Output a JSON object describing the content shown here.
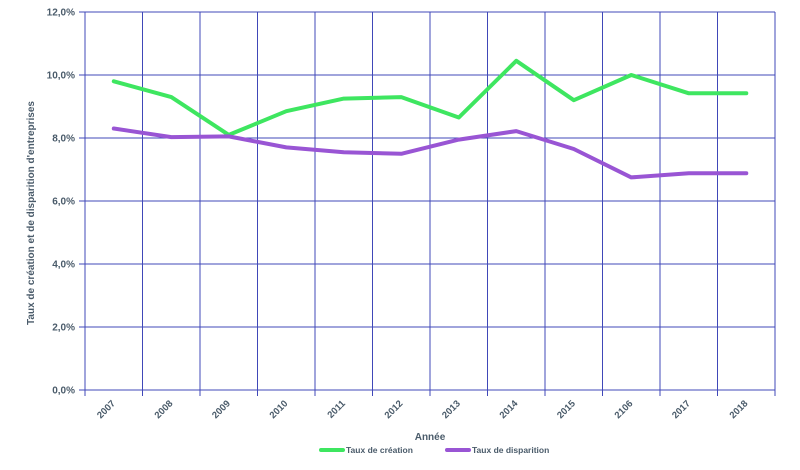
{
  "chart_data": {
    "type": "line",
    "title": "",
    "xlabel": "Année",
    "ylabel": "Taux de création et de disparition d'entreprises",
    "categories": [
      "2007",
      "2008",
      "2009",
      "2010",
      "2011",
      "2012",
      "2013",
      "2014",
      "2015",
      "2106",
      "2017",
      "2018"
    ],
    "y_ticks": [
      "0,0%",
      "2,0%",
      "4,0%",
      "6,0%",
      "8,0%",
      "10,0%",
      "12,0%"
    ],
    "ylim": [
      0,
      12
    ],
    "grid": true,
    "legend_position": "bottom",
    "series": [
      {
        "name": "Taux de création",
        "color": "#3ee660",
        "values": [
          9.8,
          9.3,
          8.1,
          8.85,
          9.25,
          9.3,
          8.65,
          10.45,
          9.2,
          10.0,
          9.42,
          9.42
        ]
      },
      {
        "name": "Taux de disparition",
        "color": "#9955d4",
        "values": [
          8.3,
          8.03,
          8.05,
          7.7,
          7.55,
          7.5,
          7.95,
          8.22,
          7.65,
          6.75,
          6.88,
          6.88
        ]
      }
    ],
    "grid_color": "#4048b8",
    "text_color": "#4a5b6a"
  }
}
